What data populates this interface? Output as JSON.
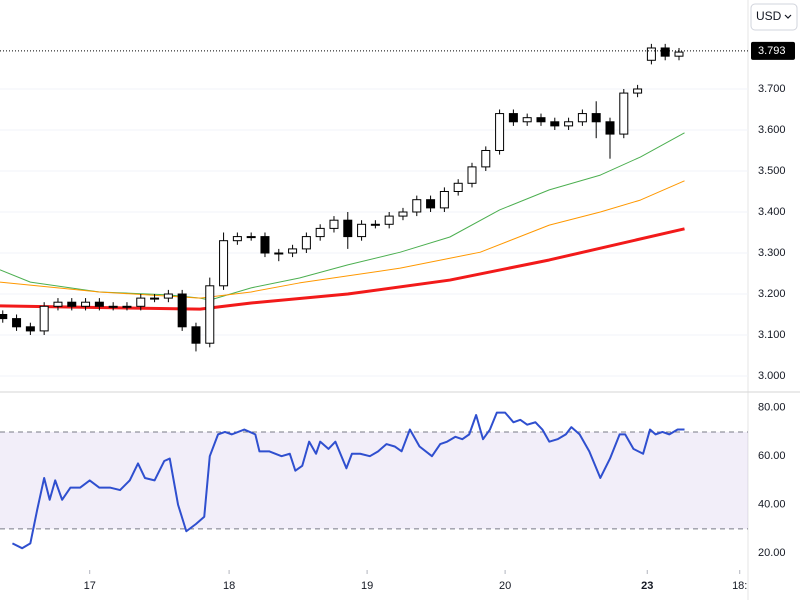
{
  "ui": {
    "currency": "USD"
  },
  "chart_data": [
    {
      "type": "candlestick",
      "xlim": [
        -0.2,
        54.0
      ],
      "ylim": [
        2.961,
        3.917
      ],
      "yticks": [
        {
          "value": 3.0,
          "label": "3.000"
        },
        {
          "value": 3.1,
          "label": "3.100"
        },
        {
          "value": 3.2,
          "label": "3.200"
        },
        {
          "value": 3.3,
          "label": "3.300"
        },
        {
          "value": 3.4,
          "label": "3.400"
        },
        {
          "value": 3.5,
          "label": "3.500"
        },
        {
          "value": 3.6,
          "label": "3.600"
        },
        {
          "value": 3.7,
          "label": "3.700"
        }
      ],
      "grid": true,
      "up_color": "#ffffff",
      "down_color": "#000000",
      "last_price": {
        "value": 3.793,
        "label": "3.793"
      },
      "x": [
        0,
        1,
        2,
        3,
        4,
        5,
        6,
        7,
        8,
        9,
        10,
        11,
        12,
        13,
        14,
        15,
        16,
        17,
        18,
        19,
        20,
        21,
        22,
        23,
        24,
        25,
        26,
        27,
        28,
        29,
        30,
        31,
        32,
        33,
        34,
        35,
        36,
        37,
        38,
        39,
        40,
        41,
        42,
        43,
        44,
        45,
        46,
        47,
        48,
        49
      ],
      "open": [
        3.15,
        3.14,
        3.12,
        3.11,
        3.17,
        3.18,
        3.17,
        3.18,
        3.17,
        3.17,
        3.17,
        3.19,
        3.19,
        3.2,
        3.12,
        3.08,
        3.22,
        3.33,
        3.34,
        3.34,
        3.3,
        3.3,
        3.31,
        3.34,
        3.36,
        3.38,
        3.34,
        3.37,
        3.37,
        3.39,
        3.4,
        3.43,
        3.41,
        3.45,
        3.47,
        3.51,
        3.55,
        3.64,
        3.62,
        3.63,
        3.62,
        3.61,
        3.62,
        3.64,
        3.62,
        3.59,
        3.69,
        3.77,
        3.8,
        3.78
      ],
      "high": [
        3.16,
        3.15,
        3.13,
        3.18,
        3.19,
        3.19,
        3.19,
        3.19,
        3.18,
        3.18,
        3.2,
        3.2,
        3.21,
        3.21,
        3.13,
        3.24,
        3.35,
        3.35,
        3.35,
        3.35,
        3.31,
        3.32,
        3.35,
        3.37,
        3.39,
        3.4,
        3.38,
        3.38,
        3.4,
        3.41,
        3.44,
        3.44,
        3.46,
        3.48,
        3.52,
        3.56,
        3.65,
        3.65,
        3.64,
        3.64,
        3.63,
        3.63,
        3.65,
        3.67,
        3.63,
        3.7,
        3.71,
        3.81,
        3.81,
        3.8
      ],
      "low": [
        3.13,
        3.11,
        3.1,
        3.1,
        3.16,
        3.16,
        3.16,
        3.16,
        3.16,
        3.16,
        3.16,
        3.18,
        3.18,
        3.11,
        3.06,
        3.07,
        3.21,
        3.32,
        3.33,
        3.29,
        3.28,
        3.29,
        3.3,
        3.33,
        3.35,
        3.31,
        3.33,
        3.36,
        3.36,
        3.38,
        3.39,
        3.4,
        3.4,
        3.44,
        3.46,
        3.5,
        3.54,
        3.61,
        3.61,
        3.61,
        3.6,
        3.6,
        3.61,
        3.58,
        3.53,
        3.58,
        3.68,
        3.76,
        3.77,
        3.77
      ],
      "close": [
        3.14,
        3.12,
        3.11,
        3.17,
        3.18,
        3.17,
        3.18,
        3.17,
        3.17,
        3.17,
        3.19,
        3.19,
        3.2,
        3.12,
        3.08,
        3.22,
        3.33,
        3.34,
        3.34,
        3.3,
        3.3,
        3.31,
        3.34,
        3.36,
        3.38,
        3.34,
        3.37,
        3.37,
        3.39,
        3.4,
        3.43,
        3.41,
        3.45,
        3.47,
        3.51,
        3.55,
        3.64,
        3.62,
        3.63,
        3.62,
        3.61,
        3.62,
        3.64,
        3.62,
        3.59,
        3.69,
        3.7,
        3.8,
        3.78,
        3.79
      ],
      "series": [
        {
          "color": "#4caf50",
          "line_width": 1,
          "x": [
            -0.2,
            2,
            7,
            12,
            14.3,
            15,
            18,
            21.5,
            25,
            28.8,
            32.4,
            36,
            39.6,
            43.3,
            46.2,
            49.4
          ],
          "values": [
            3.259,
            3.229,
            3.205,
            3.198,
            3.19,
            3.185,
            3.215,
            3.239,
            3.271,
            3.302,
            3.339,
            3.405,
            3.454,
            3.49,
            3.534,
            3.593
          ]
        },
        {
          "color": "#ff9800",
          "line_width": 1,
          "x": [
            -0.2,
            7,
            14.3,
            18,
            21.5,
            28.8,
            34.6,
            39.6,
            43.3,
            46.2,
            49.4
          ],
          "values": [
            3.229,
            3.205,
            3.19,
            3.205,
            3.227,
            3.263,
            3.302,
            3.368,
            3.4,
            3.429,
            3.476
          ]
        },
        {
          "color": "#f21a1a",
          "line_width": 3,
          "x": [
            -0.2,
            14.3,
            18,
            25,
            32.4,
            39.6,
            49.4
          ],
          "values": [
            3.171,
            3.163,
            3.178,
            3.2,
            3.234,
            3.283,
            3.359
          ]
        }
      ]
    },
    {
      "type": "line",
      "xlim": [
        -0.2,
        54.0
      ],
      "ylim": [
        13,
        86.5
      ],
      "yticks": [
        {
          "value": 20,
          "label": "20.00"
        },
        {
          "value": 40,
          "label": "40.00"
        },
        {
          "value": 60,
          "label": "60.00"
        },
        {
          "value": 80,
          "label": "80.00"
        }
      ],
      "band": [
        30,
        70
      ],
      "xticks": [
        {
          "value": 6.3,
          "label": "17"
        },
        {
          "value": 16.4,
          "label": "18"
        },
        {
          "value": 26.4,
          "label": "19"
        },
        {
          "value": 36.4,
          "label": "20"
        },
        {
          "value": 46.7,
          "label": "23"
        },
        {
          "value": 53.4,
          "label": "18:"
        }
      ],
      "series": [
        {
          "color": "#2f4fcf",
          "x": [
            0.7,
            1.4,
            2.0,
            2.5,
            3.0,
            3.4,
            3.8,
            4.3,
            4.9,
            5.6,
            6.3,
            7.0,
            7.8,
            8.5,
            9.2,
            9.8,
            10.3,
            11.0,
            11.7,
            12.1,
            12.7,
            13.3,
            14.0,
            14.6,
            15.0,
            15.6,
            16.1,
            16.6,
            17.5,
            18.3,
            18.6,
            19.3,
            20.2,
            20.8,
            21.2,
            21.7,
            22.2,
            22.7,
            23.0,
            23.6,
            24.1,
            24.9,
            25.3,
            25.9,
            26.6,
            27.2,
            27.8,
            28.4,
            28.9,
            29.5,
            30.2,
            31.1,
            31.7,
            32.2,
            32.8,
            33.3,
            33.8,
            34.3,
            34.8,
            35.3,
            35.8,
            36.4,
            37.0,
            37.5,
            38.0,
            38.6,
            39.1,
            39.6,
            40.2,
            40.8,
            41.2,
            41.8,
            42.5,
            43.3,
            44.0,
            44.7,
            45.1,
            45.7,
            46.4,
            46.9,
            47.3,
            47.8,
            48.3,
            48.9,
            49.4
          ],
          "values": [
            24,
            22,
            24,
            38,
            51,
            42,
            50,
            42,
            47,
            47,
            50,
            47,
            47,
            46,
            50,
            57,
            51,
            50,
            58,
            59,
            40,
            29,
            32,
            35,
            60,
            69,
            70,
            69,
            71,
            69,
            62,
            62,
            60,
            61,
            54,
            56,
            66,
            61,
            66,
            63,
            66,
            55,
            61,
            61,
            60,
            62,
            65,
            64,
            62,
            71,
            64,
            60,
            65,
            66,
            68,
            67,
            69,
            77,
            67,
            71,
            78,
            78,
            74,
            75,
            73,
            74,
            71,
            66,
            67,
            69,
            72,
            69,
            62,
            51,
            59,
            69,
            69,
            63,
            61,
            71,
            69,
            70,
            69,
            71,
            71
          ]
        }
      ]
    }
  ]
}
